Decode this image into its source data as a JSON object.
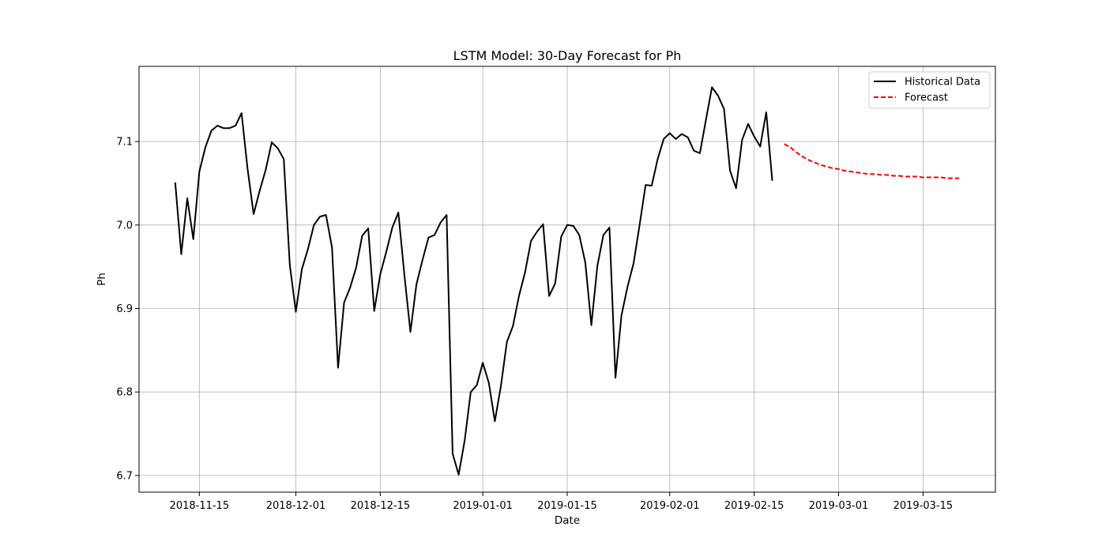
{
  "chart_data": {
    "type": "line",
    "title": "LSTM Model: 30-Day Forecast for Ph",
    "xlabel": "Date",
    "ylabel": "Ph",
    "xlim": [
      "2018-11-05",
      "2019-03-27"
    ],
    "ylim": [
      6.68,
      7.19
    ],
    "grid": true,
    "legend_position": "top-right",
    "x_ticks": [
      "2018-11-15",
      "2018-12-01",
      "2018-12-15",
      "2019-01-01",
      "2019-01-15",
      "2019-02-01",
      "2019-02-15",
      "2019-03-01",
      "2019-03-15"
    ],
    "y_ticks": [
      6.7,
      6.8,
      6.9,
      7.0,
      7.1
    ],
    "series": [
      {
        "name": "Historical Data",
        "color": "#000000",
        "style": "solid",
        "x": [
          "2018-11-11",
          "2018-11-12",
          "2018-11-13",
          "2018-11-14",
          "2018-11-15",
          "2018-11-16",
          "2018-11-17",
          "2018-11-18",
          "2018-11-19",
          "2018-11-20",
          "2018-11-21",
          "2018-11-22",
          "2018-11-23",
          "2018-11-24",
          "2018-11-25",
          "2018-11-26",
          "2018-11-27",
          "2018-11-28",
          "2018-11-29",
          "2018-11-30",
          "2018-12-01",
          "2018-12-02",
          "2018-12-03",
          "2018-12-04",
          "2018-12-05",
          "2018-12-06",
          "2018-12-07",
          "2018-12-08",
          "2018-12-09",
          "2018-12-10",
          "2018-12-11",
          "2018-12-12",
          "2018-12-13",
          "2018-12-14",
          "2018-12-15",
          "2018-12-16",
          "2018-12-17",
          "2018-12-18",
          "2018-12-19",
          "2018-12-20",
          "2018-12-21",
          "2018-12-22",
          "2018-12-23",
          "2018-12-24",
          "2018-12-25",
          "2018-12-26",
          "2018-12-27",
          "2018-12-28",
          "2018-12-29",
          "2018-12-30",
          "2018-12-31",
          "2019-01-01",
          "2019-01-02",
          "2019-01-03",
          "2019-01-04",
          "2019-01-05",
          "2019-01-06",
          "2019-01-07",
          "2019-01-08",
          "2019-01-09",
          "2019-01-10",
          "2019-01-11",
          "2019-01-12",
          "2019-01-13",
          "2019-01-14",
          "2019-01-15",
          "2019-01-16",
          "2019-01-17",
          "2019-01-18",
          "2019-01-19",
          "2019-01-20",
          "2019-01-21",
          "2019-01-22",
          "2019-01-23",
          "2019-01-24",
          "2019-01-25",
          "2019-01-26",
          "2019-01-27",
          "2019-01-28",
          "2019-01-29",
          "2019-01-30",
          "2019-01-31",
          "2019-02-01",
          "2019-02-02",
          "2019-02-03",
          "2019-02-04",
          "2019-02-05",
          "2019-02-06",
          "2019-02-07",
          "2019-02-08",
          "2019-02-09",
          "2019-02-10",
          "2019-02-11",
          "2019-02-12",
          "2019-02-13",
          "2019-02-14",
          "2019-02-15",
          "2019-02-16",
          "2019-02-17",
          "2019-02-18",
          "2019-02-19"
        ],
        "y": [
          7.051,
          6.965,
          7.032,
          6.983,
          7.064,
          7.093,
          7.113,
          7.119,
          7.116,
          7.116,
          7.119,
          7.134,
          7.067,
          7.013,
          7.041,
          7.066,
          7.099,
          7.092,
          7.079,
          6.952,
          6.896,
          6.947,
          6.971,
          7.0,
          7.01,
          7.012,
          6.973,
          6.829,
          6.907,
          6.925,
          6.949,
          6.987,
          6.996,
          6.897,
          6.941,
          6.968,
          6.997,
          7.015,
          6.94,
          6.872,
          6.929,
          6.958,
          6.985,
          6.988,
          7.003,
          7.012,
          6.726,
          6.701,
          6.742,
          6.8,
          6.808,
          6.835,
          6.811,
          6.765,
          6.807,
          6.86,
          6.879,
          6.915,
          6.943,
          6.981,
          6.992,
          7.001,
          6.915,
          6.93,
          6.986,
          7.0,
          6.999,
          6.988,
          6.955,
          6.88,
          6.951,
          6.988,
          6.997,
          6.817,
          6.892,
          6.926,
          6.954,
          7.0,
          7.048,
          7.047,
          7.079,
          7.103,
          7.11,
          7.103,
          7.109,
          7.105,
          7.089,
          7.086,
          7.126,
          7.165,
          7.155,
          7.139,
          7.065,
          7.044,
          7.102,
          7.121,
          7.106,
          7.094,
          7.135,
          7.053,
          null
        ]
      },
      {
        "name": "Forecast",
        "color": "#ff0000",
        "style": "dashed",
        "x": [
          "2019-02-20",
          "2019-02-21",
          "2019-02-22",
          "2019-02-23",
          "2019-02-24",
          "2019-02-25",
          "2019-02-26",
          "2019-02-27",
          "2019-02-28",
          "2019-03-01",
          "2019-03-02",
          "2019-03-03",
          "2019-03-04",
          "2019-03-05",
          "2019-03-06",
          "2019-03-07",
          "2019-03-08",
          "2019-03-09",
          "2019-03-10",
          "2019-03-11",
          "2019-03-12",
          "2019-03-13",
          "2019-03-14",
          "2019-03-15",
          "2019-03-16",
          "2019-03-17",
          "2019-03-18",
          "2019-03-19",
          "2019-03-20",
          "2019-03-21"
        ],
        "y": [
          7.097,
          7.093,
          7.087,
          7.082,
          7.078,
          7.075,
          7.072,
          7.07,
          7.068,
          7.067,
          7.065,
          7.064,
          7.063,
          7.062,
          7.061,
          7.061,
          7.06,
          7.06,
          7.059,
          7.059,
          7.058,
          7.058,
          7.058,
          7.057,
          7.057,
          7.057,
          7.057,
          7.056,
          7.056,
          7.056
        ]
      }
    ]
  }
}
